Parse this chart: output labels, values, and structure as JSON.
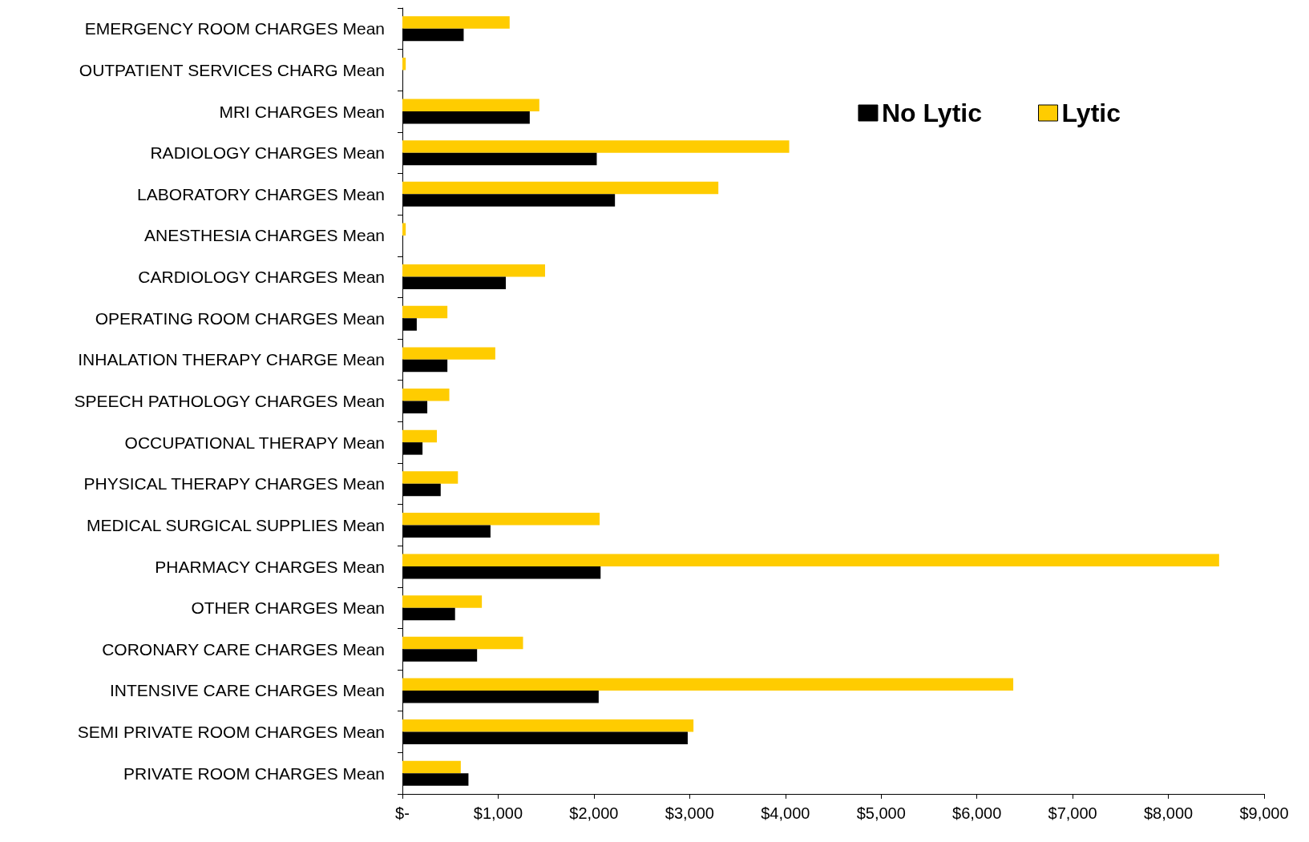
{
  "chart_data": {
    "type": "bar",
    "orientation": "horizontal",
    "categories": [
      "EMERGENCY ROOM CHARGES Mean",
      "OUTPATIENT SERVICES CHARG Mean",
      "MRI CHARGES Mean",
      "RADIOLOGY CHARGES Mean",
      "LABORATORY CHARGES Mean",
      "ANESTHESIA CHARGES Mean",
      "CARDIOLOGY CHARGES Mean",
      "OPERATING ROOM CHARGES Mean",
      "INHALATION THERAPY CHARGE Mean",
      "SPEECH PATHOLOGY CHARGES Mean",
      "OCCUPATIONAL THERAPY Mean",
      "PHYSICAL THERAPY CHARGES Mean",
      "MEDICAL SURGICAL SUPPLIES Mean",
      "PHARMACY CHARGES Mean",
      "OTHER CHARGES Mean",
      "CORONARY CARE CHARGES Mean",
      "INTENSIVE CARE CHARGES Mean",
      "SEMI PRIVATE ROOM CHARGES Mean",
      "PRIVATE ROOM CHARGES Mean"
    ],
    "series": [
      {
        "name": "No Lytic",
        "color": "#000000",
        "values": [
          640,
          0,
          1330,
          2030,
          2220,
          0,
          1080,
          150,
          470,
          260,
          210,
          400,
          920,
          2070,
          550,
          780,
          2050,
          2980,
          690
        ]
      },
      {
        "name": "Lytic",
        "color": "#ffcc00",
        "values": [
          1120,
          35,
          1430,
          4040,
          3300,
          35,
          1490,
          470,
          970,
          490,
          360,
          580,
          2060,
          8530,
          830,
          1260,
          6380,
          3040,
          610
        ]
      }
    ],
    "xlim": [
      0,
      9000
    ],
    "xticks": [
      {
        "value": 0,
        "label": "$-"
      },
      {
        "value": 1000,
        "label": "$1,000"
      },
      {
        "value": 2000,
        "label": "$2,000"
      },
      {
        "value": 3000,
        "label": "$3,000"
      },
      {
        "value": 4000,
        "label": "$4,000"
      },
      {
        "value": 5000,
        "label": "$5,000"
      },
      {
        "value": 6000,
        "label": "$6,000"
      },
      {
        "value": 7000,
        "label": "$7,000"
      },
      {
        "value": 8000,
        "label": "$8,000"
      },
      {
        "value": 9000,
        "label": "$9,000"
      }
    ],
    "grid": false,
    "legend": "top right"
  }
}
